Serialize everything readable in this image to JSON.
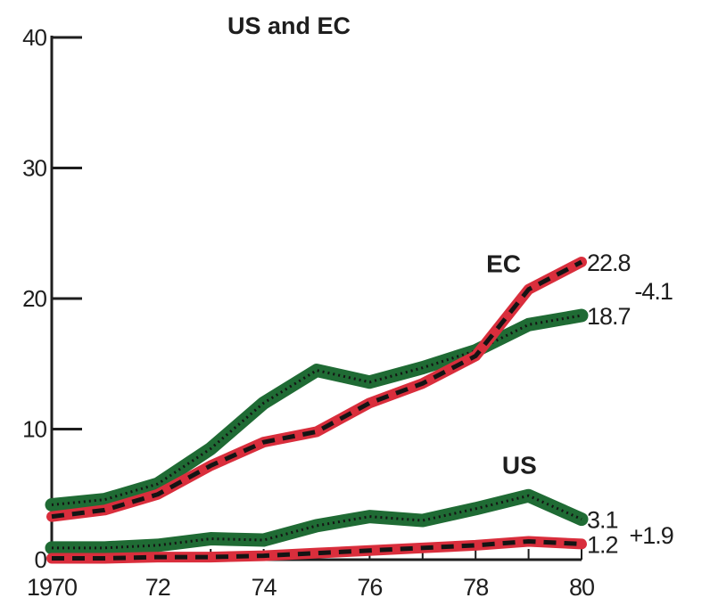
{
  "chart_data": {
    "type": "line",
    "title": "US and EC",
    "xlabel": "",
    "ylabel": "",
    "xlim": [
      1970,
      1980
    ],
    "ylim": [
      0,
      40
    ],
    "x": [
      1970,
      1971,
      1972,
      1973,
      1974,
      1975,
      1976,
      1977,
      1978,
      1979,
      1980
    ],
    "x_tick_values": [
      1970,
      1972,
      1974,
      1976,
      1978,
      1980
    ],
    "x_tick_labels": [
      "1970",
      "72",
      "74",
      "76",
      "78",
      "80"
    ],
    "y_ticks": [
      0,
      10,
      20,
      30,
      40
    ],
    "grid": false,
    "colors": {
      "green": "#1f6b34",
      "red": "#d92e3c",
      "black": "#141414",
      "axis": "#1e1e1e"
    },
    "series": [
      {
        "name": "EC",
        "color": "green",
        "style": "dotted-band",
        "values": [
          4.2,
          4.6,
          5.8,
          8.5,
          12.0,
          14.5,
          13.6,
          14.7,
          16.0,
          18.0,
          18.7
        ]
      },
      {
        "name": "EC",
        "color": "red",
        "style": "dashed-band",
        "values": [
          3.3,
          3.8,
          5.0,
          7.2,
          9.0,
          9.8,
          12.0,
          13.5,
          15.6,
          20.7,
          22.8
        ]
      },
      {
        "name": "US",
        "color": "green",
        "style": "dotted-band",
        "values": [
          0.9,
          0.9,
          1.1,
          1.6,
          1.5,
          2.6,
          3.3,
          3.0,
          3.9,
          4.9,
          3.1
        ]
      },
      {
        "name": "US",
        "color": "red",
        "style": "dashed-band",
        "values": [
          0.1,
          0.1,
          0.2,
          0.2,
          0.3,
          0.5,
          0.7,
          0.9,
          1.1,
          1.4,
          1.2
        ]
      }
    ],
    "series_labels": [
      {
        "text": "EC",
        "x": 1978.2,
        "y": 22.0
      },
      {
        "text": "US",
        "x": 1978.5,
        "y": 6.6
      }
    ],
    "end_labels": [
      {
        "text": "22.8",
        "x": 1980.1,
        "y": 22.8
      },
      {
        "text": "18.7",
        "x": 1980.1,
        "y": 18.7
      },
      {
        "text": "-4.1",
        "x": 1981.0,
        "y": 20.6
      },
      {
        "text": "3.1",
        "x": 1980.1,
        "y": 3.1
      },
      {
        "text": "1.2",
        "x": 1980.1,
        "y": 1.2
      },
      {
        "text": "+1.9",
        "x": 1980.9,
        "y": 1.9
      }
    ]
  }
}
